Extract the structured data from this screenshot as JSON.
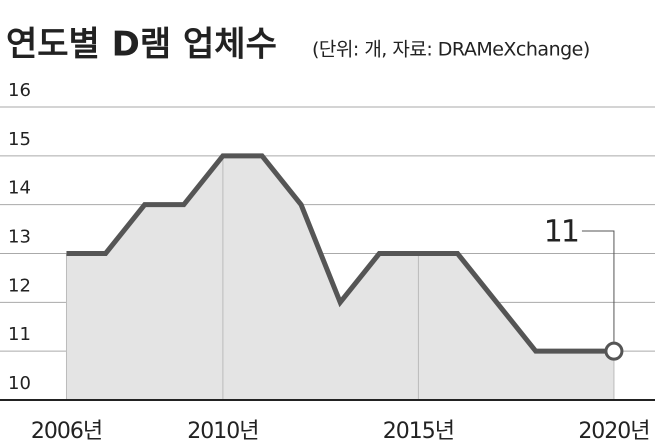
{
  "chart_data": {
    "type": "line",
    "title": "연도별 D램 업체수",
    "subtitle": "(단위: 개, 자료: DRAMeXchange)",
    "x": [
      2006,
      2007,
      2008,
      2009,
      2010,
      2011,
      2012,
      2013,
      2014,
      2015,
      2016,
      2017,
      2018,
      2019,
      2020
    ],
    "series": [
      {
        "color": "#555555",
        "values": [
          13,
          13,
          14,
          14,
          15,
          15,
          14,
          12,
          13,
          13,
          13,
          12,
          11,
          11,
          11
        ]
      }
    ],
    "xlim": [
      2004.3,
      2021.05
    ],
    "xticks": [
      {
        "value": 2006,
        "label": "2006년"
      },
      {
        "value": 2010,
        "label": "2010년"
      },
      {
        "value": 2015,
        "label": "2015년"
      },
      {
        "value": 2020,
        "label": "2020년"
      }
    ],
    "ylim": [
      10,
      16
    ],
    "yticks": [
      10,
      11,
      12,
      13,
      14,
      15,
      16
    ],
    "grid": true,
    "annotations": [
      {
        "text": "11",
        "x": 2020,
        "y": 11
      }
    ]
  }
}
